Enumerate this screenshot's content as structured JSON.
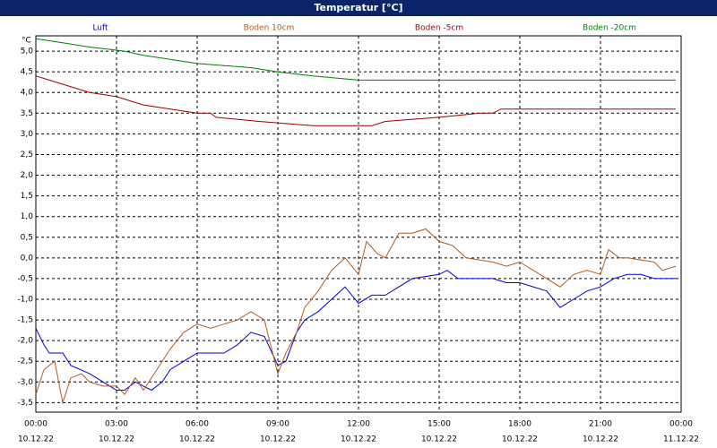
{
  "chart_data": {
    "type": "line",
    "title": "Temperatur [°C]",
    "y_unit": "°C",
    "xlim": [
      0,
      24
    ],
    "ylim": [
      -3.73,
      5.37
    ],
    "xticks": [
      {
        "value": 0,
        "label": "00:00"
      },
      {
        "value": 3,
        "label": "03:00"
      },
      {
        "value": 6,
        "label": "06:00"
      },
      {
        "value": 9,
        "label": "09:00"
      },
      {
        "value": 12,
        "label": "12:00"
      },
      {
        "value": 15,
        "label": "15:00"
      },
      {
        "value": 18,
        "label": "18:00"
      },
      {
        "value": 21,
        "label": "21:00"
      },
      {
        "value": 24,
        "label": "00:00"
      }
    ],
    "xtick_dates": [
      "10.12.22",
      "10.12.22",
      "10.12.22",
      "10.12.22",
      "10.12.22",
      "10.12.22",
      "10.12.22",
      "10.12.22",
      "11.12.22"
    ],
    "yticks": [
      {
        "value": -3.5,
        "label": "-3,5"
      },
      {
        "value": -3,
        "label": "-3,0"
      },
      {
        "value": -2.5,
        "label": "-2,5"
      },
      {
        "value": -2,
        "label": "-2,0"
      },
      {
        "value": -1.5,
        "label": "-1,5"
      },
      {
        "value": -1,
        "label": "-1,0"
      },
      {
        "value": -0.5,
        "label": "-0,5"
      },
      {
        "value": 0,
        "label": "0,0"
      },
      {
        "value": 0.5,
        "label": "0,5"
      },
      {
        "value": 1,
        "label": "1,0"
      },
      {
        "value": 1.5,
        "label": "1,5"
      },
      {
        "value": 2,
        "label": "2,0"
      },
      {
        "value": 2.5,
        "label": "2,5"
      },
      {
        "value": 3,
        "label": "3,0"
      },
      {
        "value": 3.5,
        "label": "3,5"
      },
      {
        "value": 4,
        "label": "4,0"
      },
      {
        "value": 4.5,
        "label": "4,5"
      },
      {
        "value": 5,
        "label": "5,0"
      }
    ],
    "grid": true,
    "series": [
      {
        "name": "Luft",
        "color": "#0000cc",
        "x": [
          0,
          0.3,
          0.5,
          1,
          1.3,
          2,
          2.5,
          3,
          3.3,
          3.7,
          4,
          4.3,
          4.7,
          5,
          5.5,
          6,
          7,
          7.5,
          8,
          8.5,
          9,
          9.3,
          9.7,
          10,
          10.5,
          11,
          11.5,
          12,
          12.5,
          13,
          13.5,
          14,
          15,
          15.3,
          15.7,
          16,
          17,
          17.5,
          18,
          19,
          19.5,
          20,
          20.5,
          21,
          21.5,
          22,
          22.5,
          23,
          23.5,
          23.8
        ],
        "values": [
          -1.7,
          -2.1,
          -2.3,
          -2.3,
          -2.6,
          -2.8,
          -3.0,
          -3.2,
          -3.2,
          -3.0,
          -3.1,
          -3.2,
          -3.0,
          -2.7,
          -2.5,
          -2.3,
          -2.3,
          -2.1,
          -1.8,
          -1.9,
          -2.6,
          -2.5,
          -1.8,
          -1.5,
          -1.3,
          -1.0,
          -0.7,
          -1.1,
          -0.9,
          -0.9,
          -0.7,
          -0.5,
          -0.4,
          -0.3,
          -0.5,
          -0.5,
          -0.5,
          -0.6,
          -0.6,
          -0.8,
          -1.2,
          -1.0,
          -0.8,
          -0.7,
          -0.5,
          -0.4,
          -0.4,
          -0.5,
          -0.5,
          -0.5
        ]
      },
      {
        "name": "Boden 10cm",
        "color": "#b05a1e",
        "x": [
          0,
          0.3,
          0.7,
          1,
          1.3,
          1.7,
          2,
          2.5,
          3,
          3.3,
          3.7,
          4,
          4.5,
          5,
          5.5,
          6,
          6.5,
          7,
          7.5,
          8,
          8.5,
          9,
          9.3,
          9.7,
          10,
          10.5,
          11,
          11.5,
          12,
          12.3,
          12.7,
          13,
          13.5,
          14,
          14.5,
          15,
          15.5,
          16,
          17,
          17.5,
          18,
          18.5,
          19,
          19.5,
          20,
          20.5,
          21,
          21.3,
          21.7,
          22,
          23,
          23.3,
          23.8
        ],
        "values": [
          -3.3,
          -2.7,
          -2.5,
          -3.5,
          -2.9,
          -2.8,
          -3.0,
          -3.1,
          -3.1,
          -3.3,
          -2.9,
          -3.2,
          -2.7,
          -2.2,
          -1.8,
          -1.6,
          -1.7,
          -1.6,
          -1.5,
          -1.3,
          -1.5,
          -2.8,
          -2.3,
          -1.8,
          -1.2,
          -0.8,
          -0.3,
          0.0,
          -0.4,
          0.4,
          0.1,
          0.0,
          0.6,
          0.6,
          0.7,
          0.4,
          0.3,
          0.0,
          -0.1,
          -0.2,
          -0.1,
          -0.3,
          -0.5,
          -0.7,
          -0.4,
          -0.3,
          -0.4,
          0.2,
          0.0,
          0.0,
          -0.1,
          -0.3,
          -0.2
        ]
      },
      {
        "name": "Boden -5cm",
        "color": "#990000",
        "x": [
          0,
          0.5,
          1.5,
          2,
          3,
          3.5,
          4,
          5,
          6,
          6.5,
          6.7,
          8.3,
          10.3,
          12.5,
          13,
          15,
          16.5,
          17,
          17.3,
          23.8
        ],
        "values": [
          4.4,
          4.3,
          4.1,
          4.0,
          3.9,
          3.8,
          3.7,
          3.6,
          3.5,
          3.5,
          3.4,
          3.3,
          3.2,
          3.2,
          3.3,
          3.4,
          3.5,
          3.5,
          3.6,
          3.6
        ]
      },
      {
        "name": "Boden -20cm",
        "color": "#008000",
        "x": [
          0,
          1,
          2,
          3.3,
          4,
          5,
          6,
          8,
          9,
          10.3,
          12,
          23.8
        ],
        "values": [
          5.3,
          5.2,
          5.1,
          5.0,
          4.9,
          4.8,
          4.7,
          4.6,
          4.5,
          4.4,
          4.3,
          4.3
        ]
      }
    ]
  }
}
